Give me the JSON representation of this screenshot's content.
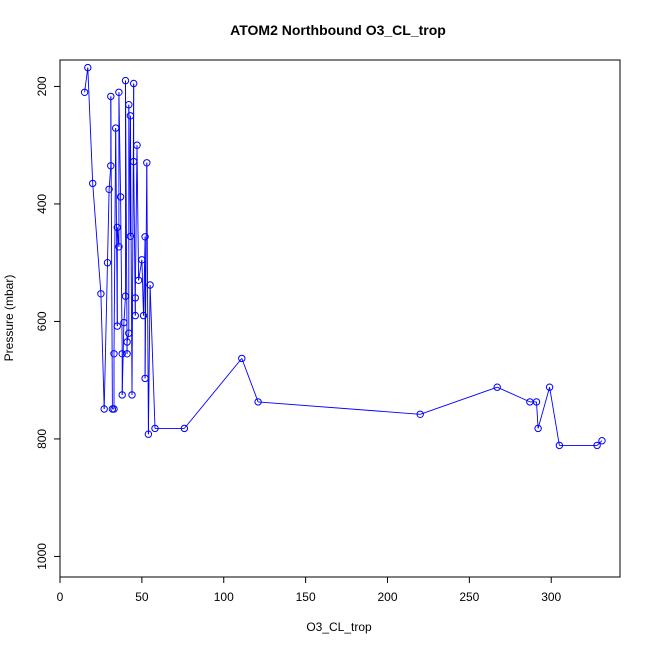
{
  "chart_data": {
    "type": "line",
    "title": "ATOM2 Northbound O3_CL_trop",
    "xlabel": "O3_CL_trop",
    "ylabel": "Pressure (mbar)",
    "xlim": [
      0,
      342
    ],
    "ylim": [
      1035,
      155
    ],
    "y_reversed": true,
    "xticks": [
      0,
      50,
      100,
      150,
      200,
      250,
      300
    ],
    "yticks": [
      200,
      400,
      600,
      800,
      1000
    ],
    "grid": false,
    "color": "#0000ff",
    "series": [
      {
        "points": [
          [
            15,
            210
          ],
          [
            17,
            168
          ],
          [
            20,
            365
          ],
          [
            25,
            553
          ],
          [
            27,
            749
          ],
          [
            29,
            500
          ],
          [
            30,
            375
          ],
          [
            31,
            335
          ],
          [
            31,
            217
          ],
          [
            32,
            749
          ],
          [
            33,
            749
          ],
          [
            33,
            655
          ],
          [
            34,
            271
          ],
          [
            35,
            608
          ],
          [
            35,
            440
          ],
          [
            36,
            473
          ],
          [
            36,
            210
          ],
          [
            37,
            388
          ],
          [
            38,
            655
          ],
          [
            38,
            725
          ],
          [
            39,
            602
          ],
          [
            40,
            557
          ],
          [
            40,
            190
          ],
          [
            41,
            655
          ],
          [
            41,
            635
          ],
          [
            42,
            620
          ],
          [
            42,
            231
          ],
          [
            43,
            455
          ],
          [
            43,
            250
          ],
          [
            44,
            725
          ],
          [
            45,
            195
          ],
          [
            45,
            328
          ],
          [
            46,
            590
          ],
          [
            46,
            560
          ],
          [
            47,
            300
          ],
          [
            48,
            530
          ],
          [
            50,
            495
          ],
          [
            51,
            590
          ],
          [
            52,
            456
          ],
          [
            52,
            697
          ],
          [
            53,
            330
          ],
          [
            54,
            792
          ],
          [
            55,
            538
          ],
          [
            58,
            782
          ],
          [
            76,
            782
          ],
          [
            111,
            663
          ],
          [
            121,
            737
          ],
          [
            220,
            758
          ],
          [
            267,
            712
          ],
          [
            287,
            737
          ],
          [
            291,
            737
          ],
          [
            292,
            782
          ],
          [
            299,
            712
          ],
          [
            305,
            811
          ],
          [
            328,
            811
          ],
          [
            331,
            803
          ]
        ]
      }
    ]
  }
}
